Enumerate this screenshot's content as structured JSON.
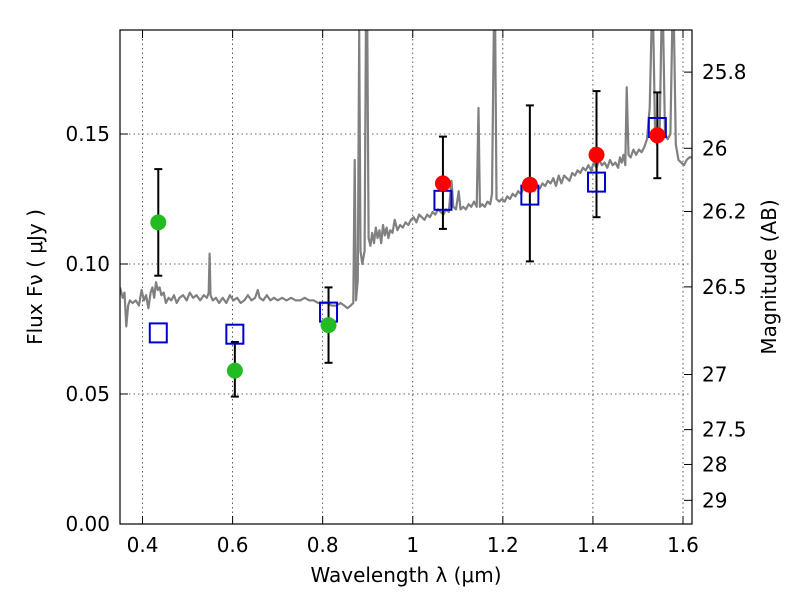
{
  "chart_data": {
    "type": "scatter",
    "xlabel": "Wavelength  λ (μm)",
    "ylabel": "Flux  Fν  ( μJy )",
    "right_ylabel": "Magnitude (AB)",
    "xlim": [
      0.35,
      1.62
    ],
    "ylim": [
      0.0,
      0.19
    ],
    "grid": true,
    "x_ticks": [
      {
        "value": 0.4,
        "label": "0.4"
      },
      {
        "value": 0.6,
        "label": "0.6"
      },
      {
        "value": 0.8,
        "label": "0.8"
      },
      {
        "value": 1.0,
        "label": "1"
      },
      {
        "value": 1.2,
        "label": "1.2"
      },
      {
        "value": 1.4,
        "label": "1.4"
      },
      {
        "value": 1.6,
        "label": "1.6"
      }
    ],
    "y_ticks": [
      {
        "value": 0.0,
        "label": "0.00"
      },
      {
        "value": 0.05,
        "label": "0.05"
      },
      {
        "value": 0.1,
        "label": "0.10"
      },
      {
        "value": 0.15,
        "label": "0.15"
      }
    ],
    "right_ticks": [
      {
        "flux": 0.1738,
        "label": "25.8"
      },
      {
        "flux": 0.1445,
        "label": "26"
      },
      {
        "flux": 0.1202,
        "label": "26.2"
      },
      {
        "flux": 0.0912,
        "label": "26.5"
      },
      {
        "flux": 0.0575,
        "label": "27"
      },
      {
        "flux": 0.0363,
        "label": "27.5"
      },
      {
        "flux": 0.0229,
        "label": "28"
      },
      {
        "flux": 0.0091,
        "label": "29"
      }
    ],
    "series": [
      {
        "kind": "line",
        "color": "#808080",
        "points": [
          [
            0.35,
            0.091
          ],
          [
            0.356,
            0.087
          ],
          [
            0.36,
            0.089
          ],
          [
            0.364,
            0.076
          ],
          [
            0.368,
            0.084
          ],
          [
            0.372,
            0.086
          ],
          [
            0.378,
            0.085
          ],
          [
            0.385,
            0.086
          ],
          [
            0.392,
            0.084
          ],
          [
            0.398,
            0.09
          ],
          [
            0.403,
            0.086
          ],
          [
            0.408,
            0.088
          ],
          [
            0.413,
            0.083
          ],
          [
            0.418,
            0.089
          ],
          [
            0.422,
            0.091
          ],
          [
            0.426,
            0.087
          ],
          [
            0.43,
            0.093
          ],
          [
            0.434,
            0.09
          ],
          [
            0.438,
            0.091
          ],
          [
            0.442,
            0.088
          ],
          [
            0.447,
            0.089
          ],
          [
            0.452,
            0.085
          ],
          [
            0.458,
            0.087
          ],
          [
            0.464,
            0.086
          ],
          [
            0.47,
            0.088
          ],
          [
            0.476,
            0.085
          ],
          [
            0.482,
            0.087
          ],
          [
            0.49,
            0.088
          ],
          [
            0.498,
            0.086
          ],
          [
            0.505,
            0.089
          ],
          [
            0.512,
            0.087
          ],
          [
            0.52,
            0.088
          ],
          [
            0.528,
            0.086
          ],
          [
            0.536,
            0.088
          ],
          [
            0.543,
            0.087
          ],
          [
            0.547,
            0.089
          ],
          [
            0.549,
            0.104
          ],
          [
            0.551,
            0.088
          ],
          [
            0.556,
            0.086
          ],
          [
            0.563,
            0.087
          ],
          [
            0.57,
            0.085
          ],
          [
            0.578,
            0.087
          ],
          [
            0.586,
            0.085
          ],
          [
            0.594,
            0.088
          ],
          [
            0.602,
            0.086
          ],
          [
            0.61,
            0.087
          ],
          [
            0.618,
            0.085
          ],
          [
            0.626,
            0.086
          ],
          [
            0.634,
            0.088
          ],
          [
            0.642,
            0.086
          ],
          [
            0.65,
            0.087
          ],
          [
            0.656,
            0.09
          ],
          [
            0.66,
            0.087
          ],
          [
            0.668,
            0.086
          ],
          [
            0.676,
            0.088
          ],
          [
            0.684,
            0.086
          ],
          [
            0.692,
            0.087
          ],
          [
            0.7,
            0.086
          ],
          [
            0.71,
            0.087
          ],
          [
            0.72,
            0.086
          ],
          [
            0.73,
            0.087
          ],
          [
            0.74,
            0.086
          ],
          [
            0.75,
            0.086
          ],
          [
            0.76,
            0.087
          ],
          [
            0.77,
            0.086
          ],
          [
            0.78,
            0.086
          ],
          [
            0.79,
            0.085
          ],
          [
            0.8,
            0.085
          ],
          [
            0.81,
            0.085
          ],
          [
            0.82,
            0.084
          ],
          [
            0.83,
            0.084
          ],
          [
            0.84,
            0.085
          ],
          [
            0.848,
            0.084
          ],
          [
            0.855,
            0.083
          ],
          [
            0.862,
            0.084
          ],
          [
            0.868,
            0.085
          ],
          [
            0.871,
            0.14
          ],
          [
            0.874,
            0.086
          ],
          [
            0.878,
            0.094
          ],
          [
            0.881,
            0.19
          ],
          [
            0.884,
            0.105
          ],
          [
            0.888,
            0.1
          ],
          [
            0.893,
            0.105
          ],
          [
            0.896,
            0.19
          ],
          [
            0.899,
            0.19
          ],
          [
            0.902,
            0.11
          ],
          [
            0.906,
            0.107
          ],
          [
            0.91,
            0.112
          ],
          [
            0.914,
            0.108
          ],
          [
            0.918,
            0.114
          ],
          [
            0.922,
            0.11
          ],
          [
            0.926,
            0.113
          ],
          [
            0.93,
            0.108
          ],
          [
            0.934,
            0.115
          ],
          [
            0.938,
            0.111
          ],
          [
            0.942,
            0.114
          ],
          [
            0.946,
            0.11
          ],
          [
            0.95,
            0.113
          ],
          [
            0.955,
            0.112
          ],
          [
            0.96,
            0.117
          ],
          [
            0.966,
            0.113
          ],
          [
            0.972,
            0.115
          ],
          [
            0.978,
            0.114
          ],
          [
            0.984,
            0.116
          ],
          [
            0.99,
            0.115
          ],
          [
            0.996,
            0.117
          ],
          [
            1.002,
            0.118
          ],
          [
            1.008,
            0.116
          ],
          [
            1.014,
            0.119
          ],
          [
            1.02,
            0.118
          ],
          [
            1.026,
            0.117
          ],
          [
            1.032,
            0.119
          ],
          [
            1.038,
            0.118
          ],
          [
            1.044,
            0.12
          ],
          [
            1.05,
            0.119
          ],
          [
            1.056,
            0.121
          ],
          [
            1.062,
            0.12
          ],
          [
            1.068,
            0.119
          ],
          [
            1.074,
            0.121
          ],
          [
            1.08,
            0.12
          ],
          [
            1.086,
            0.132
          ],
          [
            1.09,
            0.122
          ],
          [
            1.096,
            0.121
          ],
          [
            1.102,
            0.128
          ],
          [
            1.106,
            0.121
          ],
          [
            1.112,
            0.122
          ],
          [
            1.118,
            0.121
          ],
          [
            1.124,
            0.123
          ],
          [
            1.13,
            0.122
          ],
          [
            1.136,
            0.124
          ],
          [
            1.142,
            0.122
          ],
          [
            1.146,
            0.16
          ],
          [
            1.149,
            0.122
          ],
          [
            1.154,
            0.123
          ],
          [
            1.16,
            0.122
          ],
          [
            1.166,
            0.124
          ],
          [
            1.172,
            0.123
          ],
          [
            1.176,
            0.127
          ],
          [
            1.18,
            0.19
          ],
          [
            1.183,
            0.19
          ],
          [
            1.186,
            0.125
          ],
          [
            1.192,
            0.124
          ],
          [
            1.198,
            0.125
          ],
          [
            1.204,
            0.124
          ],
          [
            1.21,
            0.126
          ],
          [
            1.216,
            0.125
          ],
          [
            1.222,
            0.127
          ],
          [
            1.228,
            0.126
          ],
          [
            1.234,
            0.128
          ],
          [
            1.24,
            0.127
          ],
          [
            1.246,
            0.129
          ],
          [
            1.252,
            0.128
          ],
          [
            1.258,
            0.13
          ],
          [
            1.264,
            0.129
          ],
          [
            1.27,
            0.128
          ],
          [
            1.276,
            0.13
          ],
          [
            1.282,
            0.129
          ],
          [
            1.288,
            0.131
          ],
          [
            1.294,
            0.13
          ],
          [
            1.3,
            0.132
          ],
          [
            1.306,
            0.131
          ],
          [
            1.312,
            0.133
          ],
          [
            1.318,
            0.13
          ],
          [
            1.324,
            0.134
          ],
          [
            1.33,
            0.131
          ],
          [
            1.336,
            0.134
          ],
          [
            1.342,
            0.133
          ],
          [
            1.348,
            0.132
          ],
          [
            1.354,
            0.135
          ],
          [
            1.36,
            0.134
          ],
          [
            1.366,
            0.136
          ],
          [
            1.372,
            0.135
          ],
          [
            1.378,
            0.137
          ],
          [
            1.384,
            0.136
          ],
          [
            1.39,
            0.138
          ],
          [
            1.396,
            0.136
          ],
          [
            1.402,
            0.139
          ],
          [
            1.408,
            0.137
          ],
          [
            1.414,
            0.14
          ],
          [
            1.42,
            0.138
          ],
          [
            1.426,
            0.139
          ],
          [
            1.432,
            0.137
          ],
          [
            1.438,
            0.14
          ],
          [
            1.444,
            0.138
          ],
          [
            1.45,
            0.139
          ],
          [
            1.456,
            0.137
          ],
          [
            1.46,
            0.141
          ],
          [
            1.464,
            0.139
          ],
          [
            1.468,
            0.142
          ],
          [
            1.472,
            0.138
          ],
          [
            1.475,
            0.168
          ],
          [
            1.479,
            0.142
          ],
          [
            1.484,
            0.141
          ],
          [
            1.49,
            0.144
          ],
          [
            1.496,
            0.142
          ],
          [
            1.502,
            0.144
          ],
          [
            1.508,
            0.143
          ],
          [
            1.514,
            0.145
          ],
          [
            1.52,
            0.148
          ],
          [
            1.526,
            0.16
          ],
          [
            1.53,
            0.19
          ],
          [
            1.534,
            0.19
          ],
          [
            1.538,
            0.15
          ],
          [
            1.542,
            0.146
          ],
          [
            1.548,
            0.15
          ],
          [
            1.552,
            0.19
          ],
          [
            1.556,
            0.19
          ],
          [
            1.56,
            0.15
          ],
          [
            1.566,
            0.148
          ],
          [
            1.572,
            0.15
          ],
          [
            1.576,
            0.19
          ],
          [
            1.58,
            0.19
          ],
          [
            1.584,
            0.146
          ],
          [
            1.59,
            0.14
          ],
          [
            1.596,
            0.139
          ],
          [
            1.602,
            0.138
          ],
          [
            1.608,
            0.14
          ],
          [
            1.614,
            0.141
          ],
          [
            1.62,
            0.141
          ]
        ]
      },
      {
        "kind": "errorbar",
        "color": "#000000",
        "points": [
          {
            "x": 0.435,
            "lo": 0.0955,
            "hi": 0.1365
          },
          {
            "x": 0.605,
            "lo": 0.049,
            "hi": 0.07
          },
          {
            "x": 0.813,
            "lo": 0.062,
            "hi": 0.091
          },
          {
            "x": 1.067,
            "lo": 0.1135,
            "hi": 0.149
          },
          {
            "x": 1.26,
            "lo": 0.101,
            "hi": 0.161
          },
          {
            "x": 1.408,
            "lo": 0.118,
            "hi": 0.1665
          },
          {
            "x": 1.543,
            "lo": 0.133,
            "hi": 0.166
          }
        ]
      },
      {
        "kind": "markers",
        "shape": "square",
        "color": "#0000cc",
        "points": [
          [
            0.435,
            0.0735
          ],
          [
            0.605,
            0.073
          ],
          [
            0.813,
            0.0815
          ],
          [
            1.067,
            0.1245
          ],
          [
            1.26,
            0.1265
          ],
          [
            1.408,
            0.1315
          ],
          [
            1.543,
            0.1525
          ]
        ]
      },
      {
        "kind": "markers",
        "shape": "circle",
        "color": "#22bb22",
        "points": [
          [
            0.435,
            0.116
          ],
          [
            0.605,
            0.059
          ],
          [
            0.813,
            0.0765
          ]
        ]
      },
      {
        "kind": "markers",
        "shape": "circle",
        "color": "#ff0000",
        "points": [
          [
            1.067,
            0.131
          ],
          [
            1.26,
            0.1305
          ],
          [
            1.408,
            0.142
          ],
          [
            1.543,
            0.1495
          ]
        ]
      }
    ]
  }
}
